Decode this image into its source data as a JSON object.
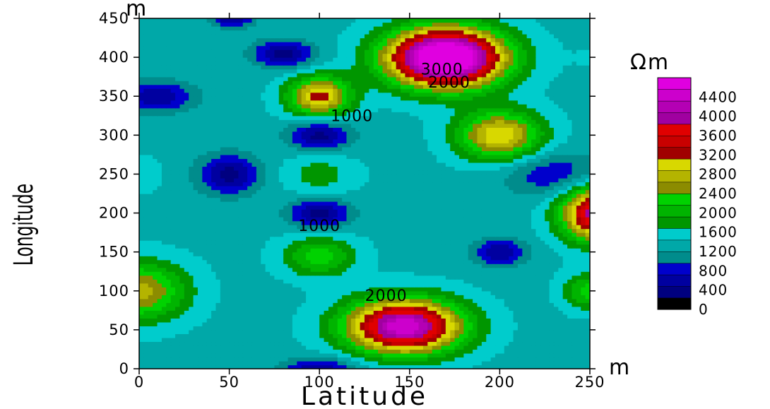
{
  "chart_data": {
    "type": "heatmap",
    "subtype": "filled-contour",
    "xlabel": "Latitude",
    "ylabel": "Longitude",
    "x_unit": "m",
    "y_unit": "m",
    "xlim": [
      0,
      250
    ],
    "ylim": [
      0,
      450
    ],
    "x_ticks": [
      "0",
      "50",
      "100",
      "150",
      "200",
      "250"
    ],
    "y_ticks": [
      "0",
      "50",
      "100",
      "150",
      "200",
      "250",
      "300",
      "350",
      "400",
      "450"
    ],
    "colorbar": {
      "unit": "Ωm",
      "range": [
        0,
        4800
      ],
      "step": 200,
      "tick_labels": [
        "0",
        "400",
        "800",
        "1200",
        "1600",
        "2000",
        "2400",
        "2800",
        "3200",
        "3600",
        "4000",
        "4400"
      ],
      "colors": [
        "#000000",
        "#000080",
        "#0000a0",
        "#0000cc",
        "#008c8c",
        "#00a8a8",
        "#00cccc",
        "#009600",
        "#00b400",
        "#00d200",
        "#8c8c00",
        "#b4b400",
        "#d8d800",
        "#a00000",
        "#c80000",
        "#e00000",
        "#a000a0",
        "#b400b4",
        "#cc00cc",
        "#e000e0"
      ]
    },
    "contour_labels": [
      {
        "text": "3000",
        "x": 168,
        "y": 378
      },
      {
        "text": "2000",
        "x": 172,
        "y": 361
      },
      {
        "text": "1000",
        "x": 118,
        "y": 318
      },
      {
        "text": "1000",
        "x": 100,
        "y": 177
      },
      {
        "text": "2000",
        "x": 137,
        "y": 87
      }
    ],
    "features": [
      {
        "x": 170,
        "y": 400,
        "value": 4600,
        "sx": 22,
        "sy": 26
      },
      {
        "x": 147,
        "y": 55,
        "value": 3800,
        "sx": 22,
        "sy": 24
      },
      {
        "x": 255,
        "y": 200,
        "value": 3500,
        "sx": 14,
        "sy": 24
      },
      {
        "x": 100,
        "y": 350,
        "value": 2700,
        "sx": 12,
        "sy": 18
      },
      {
        "x": 200,
        "y": 300,
        "value": 2600,
        "sx": 16,
        "sy": 22
      },
      {
        "x": 0,
        "y": 100,
        "value": 2300,
        "sx": 18,
        "sy": 26
      },
      {
        "x": 100,
        "y": 145,
        "value": 1900,
        "sx": 14,
        "sy": 18
      },
      {
        "x": 250,
        "y": 100,
        "value": 1900,
        "sx": 10,
        "sy": 16
      },
      {
        "x": 100,
        "y": 250,
        "value": 1500,
        "sx": 14,
        "sy": 20
      },
      {
        "x": 0,
        "y": 250,
        "value": 1300,
        "sx": 10,
        "sy": 18
      },
      {
        "x": 250,
        "y": 400,
        "value": 1200,
        "sx": 10,
        "sy": 22
      },
      {
        "x": 50,
        "y": 250,
        "value": 300,
        "sx": 12,
        "sy": 18
      },
      {
        "x": 100,
        "y": 300,
        "value": 300,
        "sx": 12,
        "sy": 14
      },
      {
        "x": 100,
        "y": 200,
        "value": 300,
        "sx": 12,
        "sy": 14
      },
      {
        "x": 200,
        "y": 150,
        "value": 400,
        "sx": 10,
        "sy": 12
      },
      {
        "x": 80,
        "y": 405,
        "value": 300,
        "sx": 12,
        "sy": 12
      },
      {
        "x": 10,
        "y": 350,
        "value": 400,
        "sx": 14,
        "sy": 14
      },
      {
        "x": 230,
        "y": 250,
        "value": 600,
        "sx": 20,
        "sy": 20
      },
      {
        "x": 100,
        "y": 0,
        "value": 400,
        "sx": 14,
        "sy": 10
      },
      {
        "x": 52,
        "y": 450,
        "value": 400,
        "sx": 8,
        "sy": 8
      }
    ],
    "base_value": 1150
  }
}
